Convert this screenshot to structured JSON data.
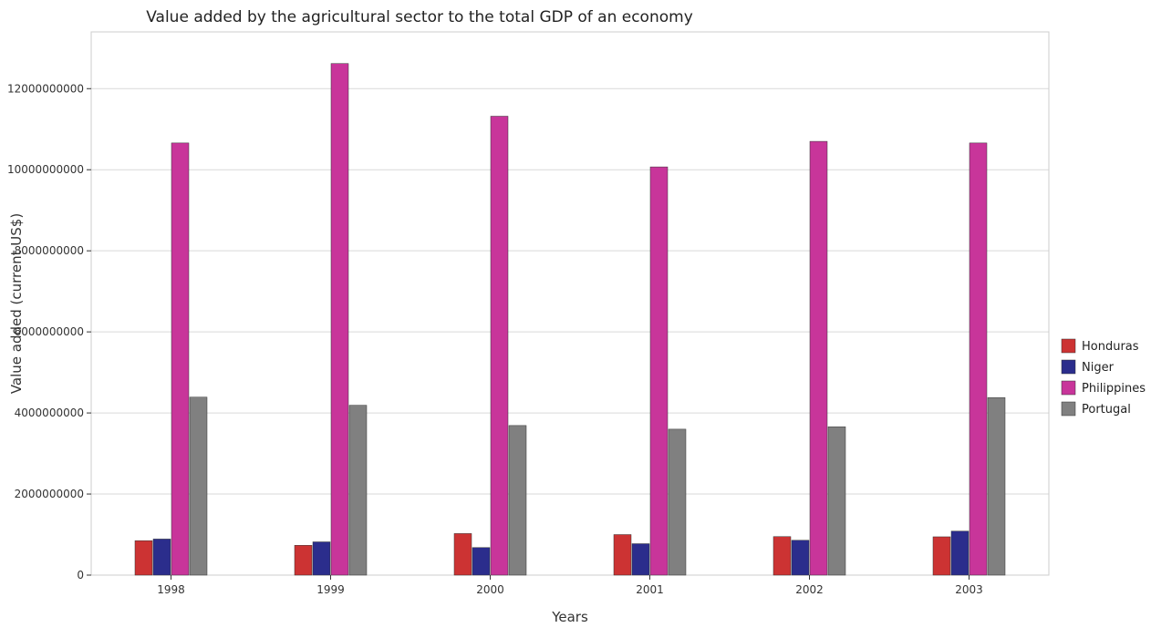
{
  "colors": {
    "Honduras": "#cc3333",
    "Niger": "#2b2d8c",
    "Philippines": "#c8359a",
    "Portugal": "#808080",
    "grid": "#d9d9d9"
  },
  "chart_data": {
    "type": "bar",
    "title": "Value added by the agricultural sector to the total GDP of an economy",
    "xlabel": "Years",
    "ylabel": "Value added (current US$)",
    "categories": [
      "1998",
      "1999",
      "2000",
      "2001",
      "2002",
      "2003"
    ],
    "ylim": [
      0,
      13400000000
    ],
    "yticks": [
      0,
      2000000000,
      4000000000,
      6000000000,
      8000000000,
      10000000000,
      12000000000
    ],
    "ytick_labels": [
      "0",
      "2000000000",
      "4000000000",
      "6000000000",
      "8000000000",
      "10000000000",
      "12000000000"
    ],
    "grid": true,
    "legend_position": "right",
    "series": [
      {
        "name": "Honduras",
        "values": [
          850000000,
          735000000,
          1025000000,
          1000000000,
          950000000,
          945000000
        ]
      },
      {
        "name": "Niger",
        "values": [
          890000000,
          820000000,
          680000000,
          775000000,
          860000000,
          1085000000
        ]
      },
      {
        "name": "Philippines",
        "values": [
          10660000000,
          12620000000,
          11320000000,
          10070000000,
          10700000000,
          10660000000
        ]
      },
      {
        "name": "Portugal",
        "values": [
          4390000000,
          4190000000,
          3690000000,
          3600000000,
          3660000000,
          4380000000
        ]
      }
    ]
  }
}
